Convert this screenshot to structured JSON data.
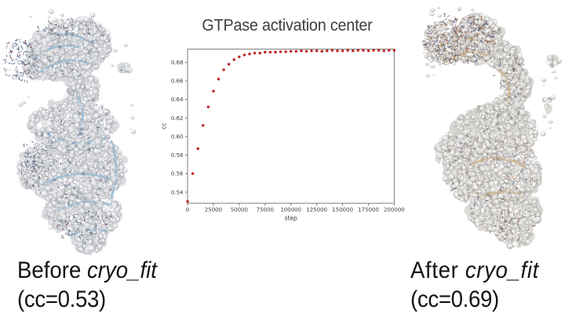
{
  "slide": {
    "background": "#ffffff"
  },
  "chart_data": {
    "type": "scatter",
    "title": "GTPase activation center",
    "xlabel": "step",
    "ylabel": "cc",
    "legend": null,
    "grid": false,
    "marker_color": "#c02020",
    "axis_color": "#7a7a7a",
    "tick_label_color": "#3c3c3c",
    "xlim": [
      0,
      200000
    ],
    "ylim": [
      0.528,
      0.6943
    ],
    "xticks": [
      0,
      25000,
      50000,
      75000,
      100000,
      125000,
      150000,
      175000,
      200000
    ],
    "yticks": [
      0.54,
      0.56,
      0.58,
      0.6,
      0.62,
      0.64,
      0.66,
      0.68
    ],
    "x": [
      0,
      5000,
      10000,
      15000,
      20000,
      25000,
      30000,
      35000,
      40000,
      45000,
      50000,
      55000,
      60000,
      65000,
      70000,
      75000,
      80000,
      85000,
      90000,
      95000,
      100000,
      105000,
      110000,
      115000,
      120000,
      125000,
      130000,
      135000,
      140000,
      145000,
      150000,
      155000,
      160000,
      165000,
      170000,
      175000,
      180000,
      185000,
      190000,
      195000,
      200000
    ],
    "y": [
      0.53,
      0.56,
      0.587,
      0.612,
      0.632,
      0.649,
      0.662,
      0.672,
      0.678,
      0.683,
      0.686,
      0.688,
      0.689,
      0.69,
      0.69,
      0.691,
      0.691,
      0.691,
      0.6915,
      0.6915,
      0.692,
      0.692,
      0.6925,
      0.692,
      0.6925,
      0.6925,
      0.692,
      0.6925,
      0.693,
      0.6925,
      0.6925,
      0.693,
      0.6925,
      0.693,
      0.693,
      0.6925,
      0.693,
      0.693,
      0.6925,
      0.693,
      0.693
    ]
  },
  "captions": {
    "before": {
      "prefix": "Before ",
      "program": "cryo_fit",
      "cc": "(cc=0.53)"
    },
    "after": {
      "prefix": "After ",
      "program": "cryo_fit",
      "cc": "(cc=0.69)"
    }
  },
  "molecules": {
    "before": {
      "surface": "#d8d8d8",
      "ribbon": "#a3c4dc",
      "sticks": "#3c4e72",
      "atoms": "#a03030"
    },
    "after": {
      "surface": "#d8d8d8",
      "ribbon": "#d7c19c",
      "sticks": "#8a6a48",
      "atoms": "#a03030"
    }
  }
}
